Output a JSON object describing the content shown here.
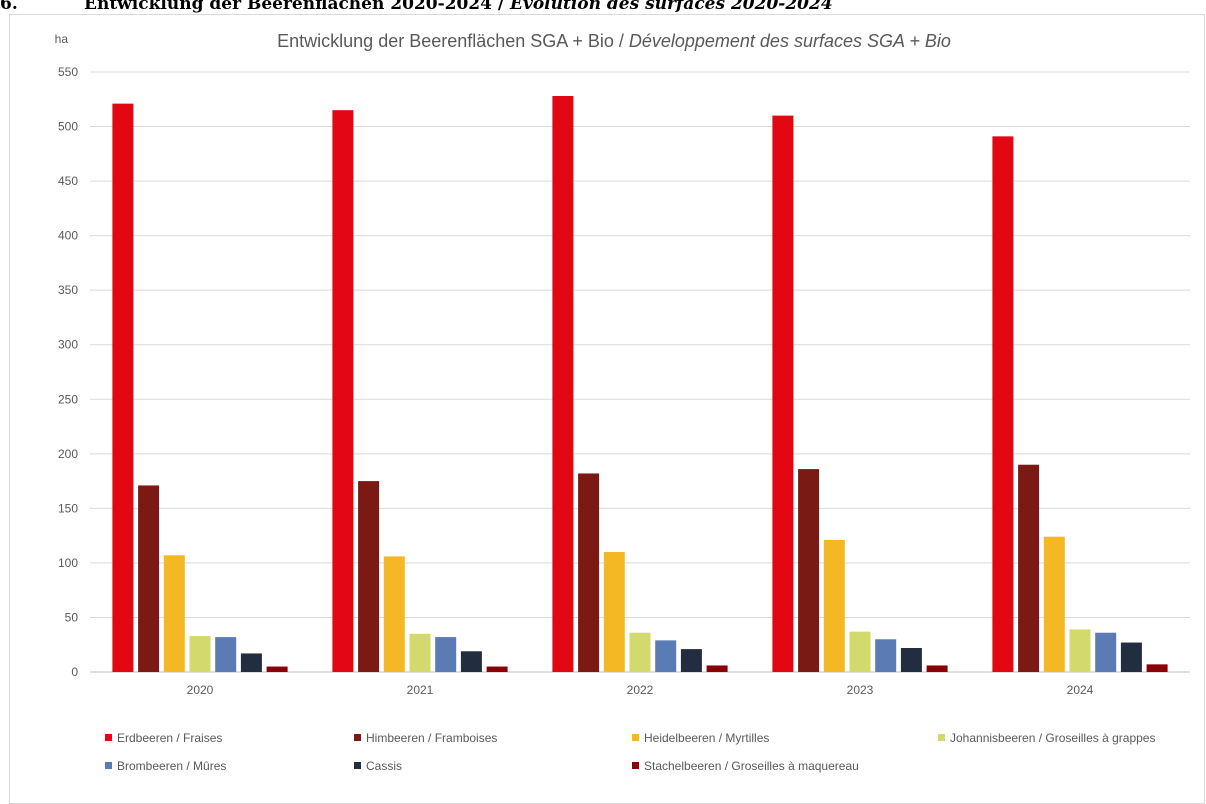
{
  "page": {
    "section_number": "6.",
    "heading_de": "Entwicklung der Beerenflächen 2020-2024 / ",
    "heading_fr": "Évolution des surfaces 2020-2024"
  },
  "chart_data": {
    "type": "bar",
    "title_de": "Entwicklung der Beerenflächen SGA + Bio / ",
    "title_fr": "Développement des surfaces SGA + Bio",
    "ylabel": "ha",
    "xlabel": "",
    "ylim": [
      0,
      550
    ],
    "yticks": [
      0,
      50,
      100,
      150,
      200,
      250,
      300,
      350,
      400,
      450,
      500,
      550
    ],
    "grid": true,
    "legend_position": "bottom",
    "categories": [
      "2020",
      "2021",
      "2022",
      "2023",
      "2024"
    ],
    "series": [
      {
        "name": "Erdbeeren / Fraises",
        "color": "#e30613",
        "values": [
          521,
          515,
          528,
          510,
          491
        ]
      },
      {
        "name": "Himbeeren / Framboises",
        "color": "#7b1a14",
        "values": [
          171,
          175,
          182,
          186,
          190
        ]
      },
      {
        "name": "Heidelbeeren / Myrtilles",
        "color": "#f4b824",
        "values": [
          107,
          106,
          110,
          121,
          124
        ]
      },
      {
        "name": "Johannisbeeren / Groseilles à grappes",
        "color": "#d2d96d",
        "values": [
          33,
          35,
          36,
          37,
          39
        ]
      },
      {
        "name": "Brombeeren / Mûres",
        "color": "#5b7bb4",
        "values": [
          32,
          32,
          29,
          30,
          36
        ]
      },
      {
        "name": "Cassis",
        "color": "#222d3f",
        "values": [
          17,
          19,
          21,
          22,
          27
        ]
      },
      {
        "name": "Stachelbeeren / Groseilles à maquereau",
        "color": "#8a0008",
        "values": [
          5,
          5,
          6,
          6,
          7
        ]
      }
    ]
  }
}
